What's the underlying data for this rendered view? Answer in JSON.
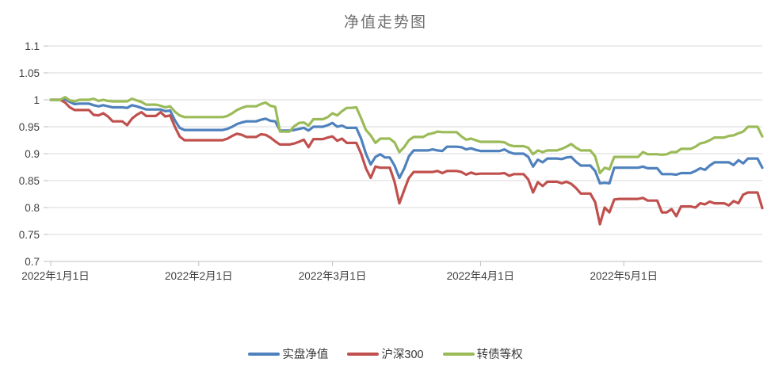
{
  "title": "净值走势图",
  "legend": [
    {
      "label": "实盘净值",
      "color": "#4F81BD"
    },
    {
      "label": "沪深300",
      "color": "#C0504D"
    },
    {
      "label": "转债等权",
      "color": "#9BBB59"
    }
  ],
  "axis": {
    "label_color": "#404040",
    "gridline_color": "#D9D9D9",
    "axisline_color": "#BFBFBF"
  },
  "chart_data": {
    "type": "line",
    "title": "净值走势图",
    "xlabel": "",
    "ylabel": "",
    "ylim": [
      0.7,
      1.1
    ],
    "grid": "horizontal",
    "legend_position": "bottom",
    "x_is_daily_dates": true,
    "x_start_date": "2022-01-01",
    "n_points": 150,
    "y_ticks": [
      0.7,
      0.75,
      0.8,
      0.85,
      0.9,
      0.95,
      1.0,
      1.05,
      1.1
    ],
    "y_tick_labels": [
      "0.7",
      "0.75",
      "0.8",
      "0.85",
      "0.9",
      "0.95",
      "1",
      "1.05",
      "1.1"
    ],
    "x_tick_labels": [
      "2022年1月1日",
      "2022年2月1日",
      "2022年3月1日",
      "2022年4月1日",
      "2022年5月1日"
    ],
    "x_tick_day_index": [
      0,
      31,
      59,
      90,
      120
    ],
    "series": [
      {
        "name": "实盘净值",
        "color": "#4F81BD",
        "values": [
          1.0,
          1.0,
          1.0,
          1.001,
          0.996,
          0.992,
          0.993,
          0.993,
          0.993,
          0.99,
          0.988,
          0.99,
          0.988,
          0.986,
          0.986,
          0.986,
          0.985,
          0.99,
          0.988,
          0.985,
          0.982,
          0.982,
          0.982,
          0.982,
          0.979,
          0.98,
          0.962,
          0.948,
          0.944,
          0.944,
          0.944,
          0.944,
          0.944,
          0.944,
          0.944,
          0.944,
          0.944,
          0.946,
          0.95,
          0.955,
          0.958,
          0.96,
          0.96,
          0.96,
          0.963,
          0.965,
          0.961,
          0.96,
          0.943,
          0.943,
          0.943,
          0.944,
          0.946,
          0.948,
          0.943,
          0.95,
          0.95,
          0.95,
          0.953,
          0.957,
          0.95,
          0.952,
          0.948,
          0.948,
          0.948,
          0.928,
          0.9,
          0.88,
          0.894,
          0.899,
          0.893,
          0.893,
          0.878,
          0.855,
          0.872,
          0.895,
          0.906,
          0.906,
          0.906,
          0.906,
          0.908,
          0.906,
          0.905,
          0.913,
          0.913,
          0.913,
          0.912,
          0.908,
          0.91,
          0.907,
          0.905,
          0.905,
          0.905,
          0.905,
          0.905,
          0.908,
          0.903,
          0.9,
          0.9,
          0.9,
          0.894,
          0.876,
          0.889,
          0.884,
          0.891,
          0.891,
          0.891,
          0.89,
          0.893,
          0.894,
          0.885,
          0.878,
          0.878,
          0.878,
          0.868,
          0.845,
          0.846,
          0.845,
          0.874,
          0.874,
          0.874,
          0.874,
          0.874,
          0.874,
          0.876,
          0.873,
          0.873,
          0.873,
          0.862,
          0.862,
          0.862,
          0.861,
          0.864,
          0.864,
          0.864,
          0.868,
          0.873,
          0.87,
          0.878,
          0.884,
          0.884,
          0.884,
          0.884,
          0.879,
          0.888,
          0.882,
          0.891,
          0.891,
          0.891,
          0.874
        ]
      },
      {
        "name": "沪深300",
        "color": "#C0504D",
        "values": [
          1.0,
          1.0,
          1.0,
          0.995,
          0.986,
          0.981,
          0.981,
          0.981,
          0.981,
          0.972,
          0.971,
          0.975,
          0.969,
          0.96,
          0.96,
          0.96,
          0.953,
          0.965,
          0.972,
          0.977,
          0.97,
          0.97,
          0.97,
          0.977,
          0.969,
          0.971,
          0.95,
          0.932,
          0.925,
          0.925,
          0.925,
          0.925,
          0.925,
          0.925,
          0.925,
          0.925,
          0.925,
          0.928,
          0.933,
          0.937,
          0.935,
          0.931,
          0.931,
          0.931,
          0.936,
          0.935,
          0.93,
          0.923,
          0.917,
          0.917,
          0.917,
          0.919,
          0.922,
          0.926,
          0.912,
          0.927,
          0.927,
          0.927,
          0.93,
          0.932,
          0.924,
          0.928,
          0.92,
          0.92,
          0.92,
          0.9,
          0.873,
          0.855,
          0.876,
          0.874,
          0.874,
          0.874,
          0.848,
          0.808,
          0.832,
          0.855,
          0.866,
          0.866,
          0.866,
          0.866,
          0.866,
          0.868,
          0.864,
          0.868,
          0.868,
          0.868,
          0.866,
          0.861,
          0.865,
          0.862,
          0.863,
          0.863,
          0.863,
          0.863,
          0.863,
          0.864,
          0.859,
          0.862,
          0.862,
          0.862,
          0.852,
          0.828,
          0.847,
          0.84,
          0.848,
          0.848,
          0.848,
          0.845,
          0.848,
          0.844,
          0.836,
          0.826,
          0.826,
          0.826,
          0.81,
          0.769,
          0.8,
          0.791,
          0.815,
          0.816,
          0.816,
          0.816,
          0.816,
          0.816,
          0.818,
          0.813,
          0.813,
          0.813,
          0.791,
          0.791,
          0.797,
          0.784,
          0.802,
          0.802,
          0.802,
          0.8,
          0.808,
          0.806,
          0.811,
          0.808,
          0.808,
          0.808,
          0.804,
          0.812,
          0.808,
          0.824,
          0.828,
          0.828,
          0.828,
          0.799
        ]
      },
      {
        "name": "转债等权",
        "color": "#9BBB59",
        "values": [
          1.0,
          1.0,
          1.0,
          1.005,
          0.999,
          0.997,
          1.0,
          1.0,
          1.0,
          1.002,
          0.998,
          1.0,
          0.998,
          0.997,
          0.997,
          0.997,
          0.997,
          1.002,
          0.999,
          0.996,
          0.991,
          0.991,
          0.991,
          0.989,
          0.986,
          0.988,
          0.978,
          0.971,
          0.968,
          0.968,
          0.968,
          0.968,
          0.968,
          0.968,
          0.968,
          0.968,
          0.968,
          0.97,
          0.975,
          0.981,
          0.985,
          0.988,
          0.988,
          0.988,
          0.992,
          0.995,
          0.989,
          0.987,
          0.941,
          0.941,
          0.941,
          0.951,
          0.957,
          0.958,
          0.952,
          0.964,
          0.964,
          0.964,
          0.968,
          0.975,
          0.971,
          0.979,
          0.985,
          0.985,
          0.986,
          0.966,
          0.944,
          0.934,
          0.92,
          0.928,
          0.928,
          0.928,
          0.921,
          0.903,
          0.912,
          0.925,
          0.931,
          0.931,
          0.931,
          0.936,
          0.938,
          0.941,
          0.94,
          0.94,
          0.94,
          0.94,
          0.932,
          0.926,
          0.928,
          0.925,
          0.922,
          0.922,
          0.922,
          0.922,
          0.922,
          0.921,
          0.916,
          0.914,
          0.914,
          0.914,
          0.911,
          0.899,
          0.906,
          0.903,
          0.906,
          0.906,
          0.906,
          0.909,
          0.913,
          0.918,
          0.911,
          0.906,
          0.906,
          0.906,
          0.895,
          0.864,
          0.874,
          0.871,
          0.894,
          0.894,
          0.894,
          0.894,
          0.894,
          0.894,
          0.903,
          0.899,
          0.899,
          0.899,
          0.898,
          0.899,
          0.903,
          0.903,
          0.909,
          0.909,
          0.909,
          0.913,
          0.919,
          0.921,
          0.925,
          0.93,
          0.93,
          0.93,
          0.933,
          0.934,
          0.938,
          0.941,
          0.95,
          0.95,
          0.95,
          0.932
        ]
      }
    ]
  }
}
